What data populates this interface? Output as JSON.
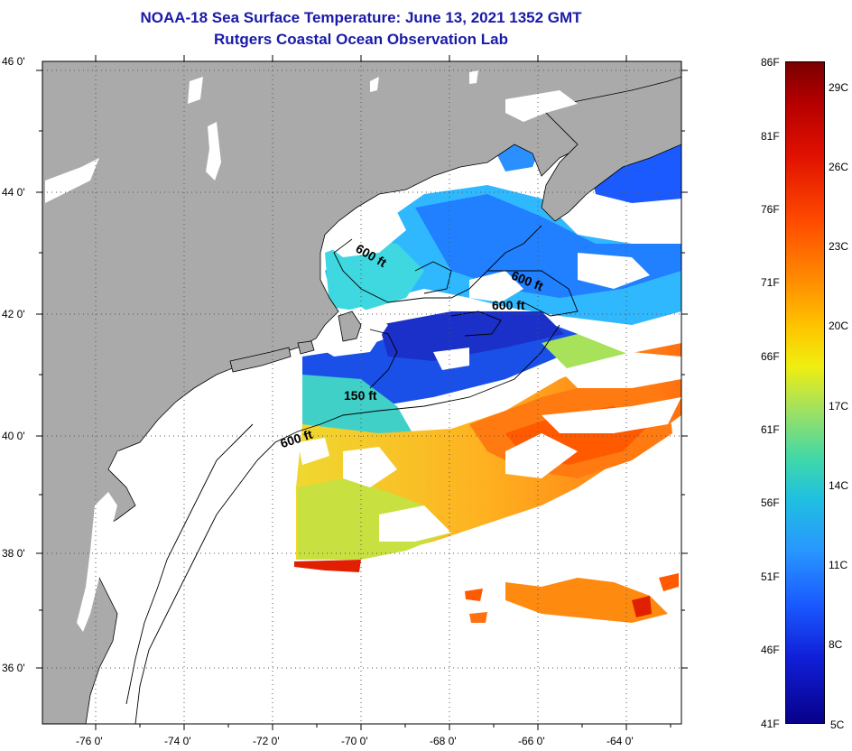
{
  "title": {
    "line1": "NOAA-18 Sea Surface Temperature:  June 13, 2021 1352 GMT",
    "line2": "Rutgers Coastal Ocean Observation Lab"
  },
  "axes": {
    "latitudes": [
      "46 0'",
      "44 0'",
      "42 0'",
      "40 0'",
      "38 0'",
      "36 0'"
    ],
    "longitudes": [
      "-76 0'",
      "-74 0'",
      "-72 0'",
      "-70 0'",
      "-68 0'",
      "-66 0'",
      "-64 0'"
    ]
  },
  "contours": {
    "label_600_north": "600 ft",
    "label_600_east": "600 ft",
    "label_600_mid": "600 ft",
    "label_150": "150 ft",
    "label_600_south": "600 ft"
  },
  "colorbar": {
    "fahrenheit": [
      "86F",
      "81F",
      "76F",
      "71F",
      "66F",
      "61F",
      "56F",
      "51F",
      "46F",
      "41F"
    ],
    "celsius": [
      "29C",
      "26C",
      "23C",
      "20C",
      "17C",
      "14C",
      "11C",
      "8C",
      "5C"
    ]
  },
  "colors": {
    "land": "#aaaaaa",
    "title": "#1a1aa8"
  }
}
